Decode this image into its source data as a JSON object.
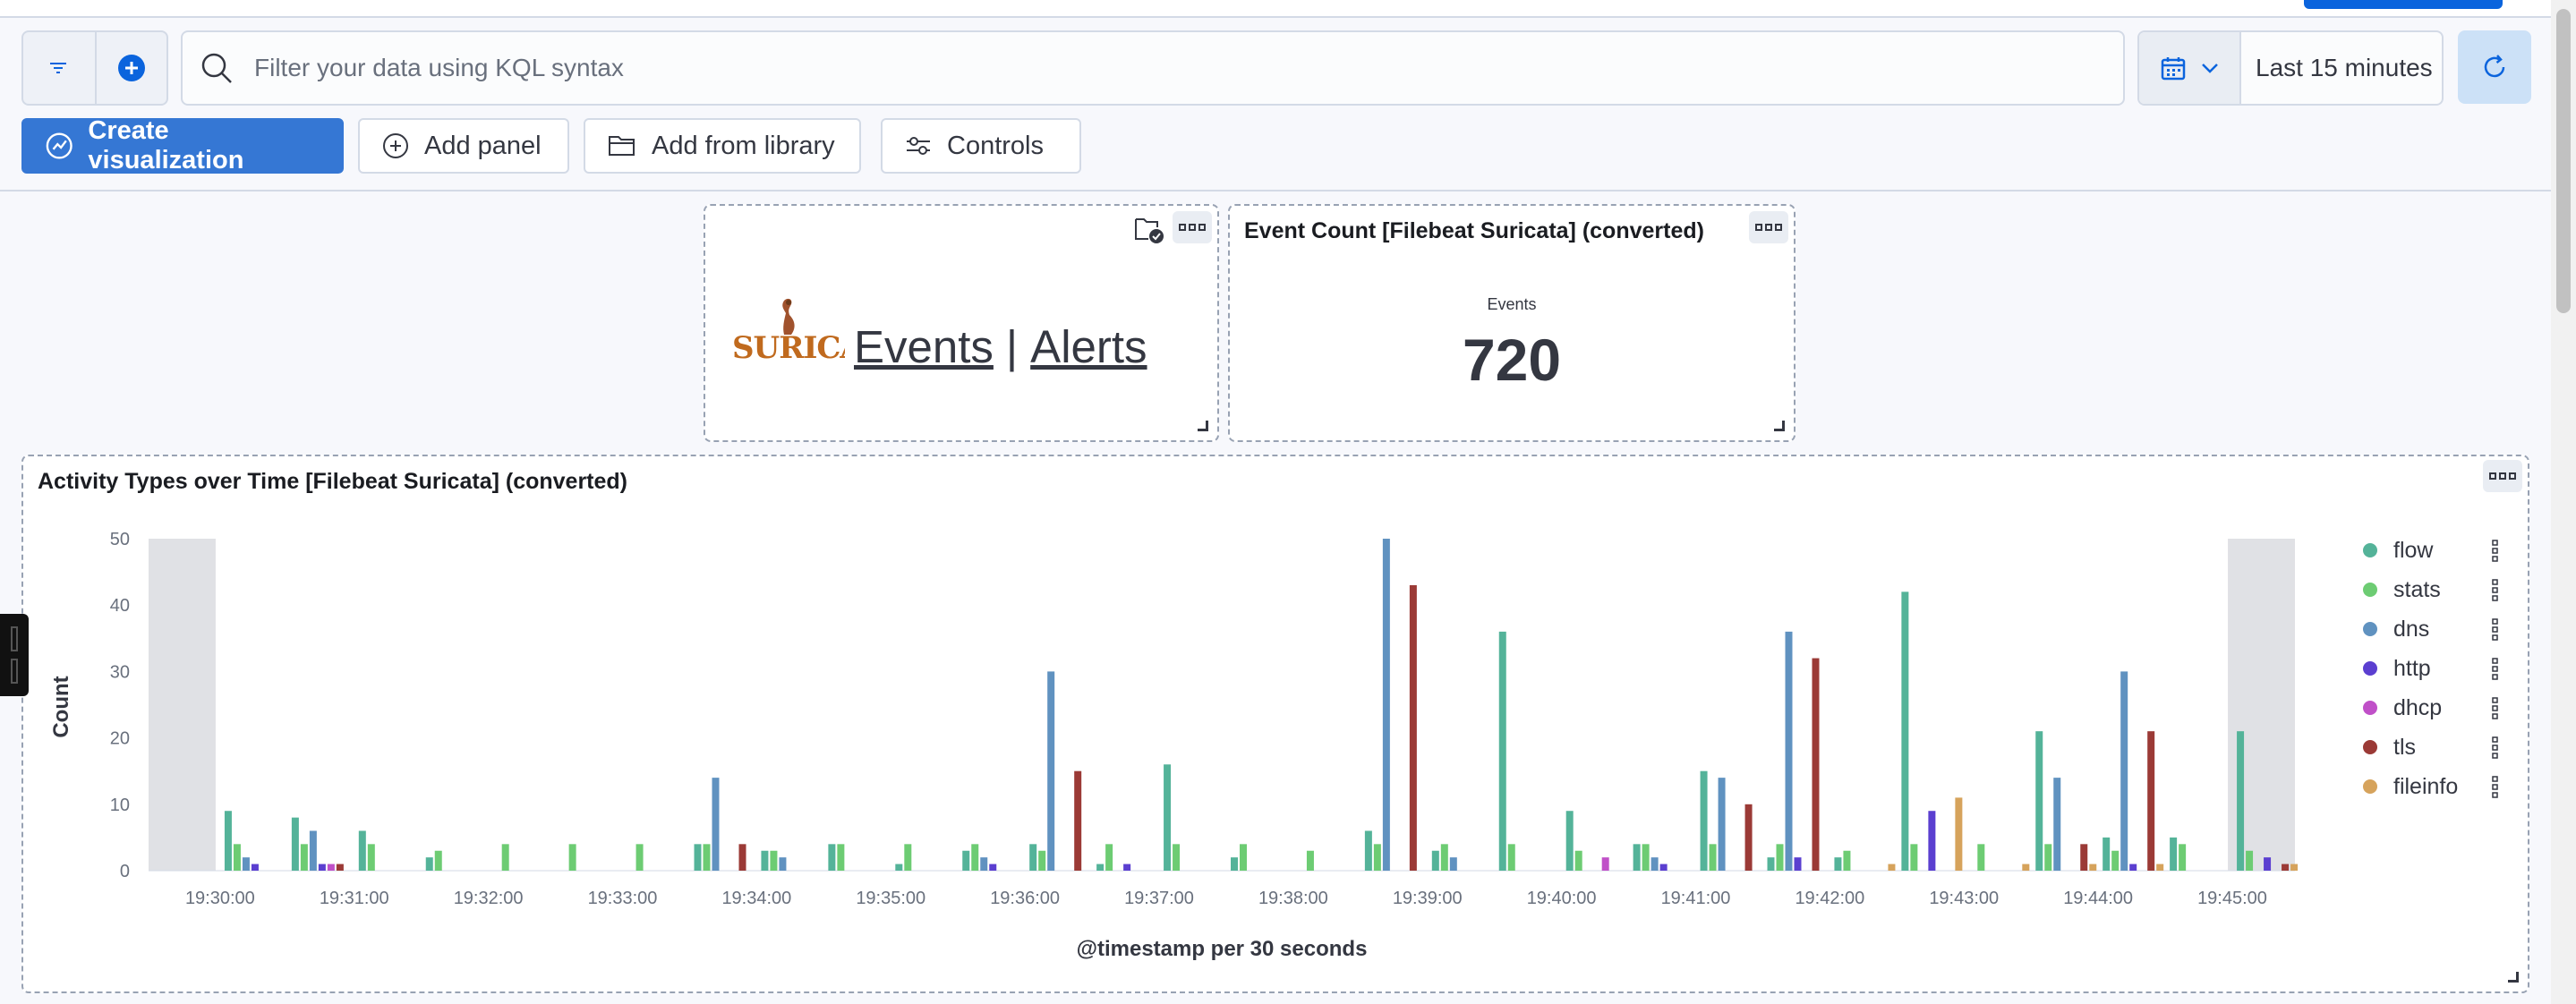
{
  "query_bar": {
    "search_placeholder": "Filter your data using KQL syntax",
    "time_range": "Last 15 minutes"
  },
  "toolbar": {
    "create_visualization": "Create visualization",
    "add_panel": "Add panel",
    "add_from_library": "Add from library",
    "controls": "Controls"
  },
  "panels": {
    "links": {
      "logo_text": "SURICATA",
      "events_link": "Events",
      "separator": "|",
      "alerts_link": "Alerts"
    },
    "event_count": {
      "title": "Event Count [Filebeat Suricata] (converted)",
      "label": "Events",
      "value": "720"
    },
    "activity": {
      "title": "Activity Types over Time [Filebeat Suricata] (converted)"
    }
  },
  "colors": {
    "primary": "#3577d4",
    "flow": "#54b399",
    "stats": "#6dcc73",
    "dns": "#6092c0",
    "http": "#5b3fd0",
    "dhcp": "#c050c8",
    "tls": "#9b3a36",
    "fileinfo": "#d6a35c"
  },
  "chart_data": {
    "type": "bar",
    "xlabel": "@timestamp per 30 seconds",
    "ylabel": "Count",
    "ylim": [
      0,
      50
    ],
    "yticks": [
      0,
      10,
      20,
      30,
      40,
      50
    ],
    "x_start": "19:29:30",
    "x_end": "19:45:30",
    "x_tick_labels": [
      "19:30:00",
      "19:31:00",
      "19:32:00",
      "19:33:00",
      "19:34:00",
      "19:35:00",
      "19:36:00",
      "19:37:00",
      "19:38:00",
      "19:39:00",
      "19:40:00",
      "19:41:00",
      "19:42:00",
      "19:43:00",
      "19:44:00",
      "19:45:00"
    ],
    "shaded_regions": [
      [
        "19:29:30",
        "19:30:00"
      ],
      [
        "19:45:00",
        "19:45:30"
      ]
    ],
    "legend_position": "right",
    "categories": [
      "19:30:00",
      "19:30:30",
      "19:31:00",
      "19:31:30",
      "19:32:00",
      "19:32:30",
      "19:33:00",
      "19:33:30",
      "19:34:00",
      "19:34:30",
      "19:35:00",
      "19:35:30",
      "19:36:00",
      "19:36:30",
      "19:37:00",
      "19:37:30",
      "19:38:00",
      "19:38:30",
      "19:39:00",
      "19:39:30",
      "19:40:00",
      "19:40:30",
      "19:41:00",
      "19:41:30",
      "19:42:00",
      "19:42:30",
      "19:43:00",
      "19:43:30",
      "19:44:00",
      "19:44:30",
      "19:45:00"
    ],
    "series": [
      {
        "name": "flow",
        "values": [
          9,
          8,
          6,
          2,
          0,
          0,
          0,
          4,
          3,
          4,
          1,
          3,
          4,
          1,
          16,
          2,
          0,
          6,
          3,
          36,
          9,
          4,
          15,
          2,
          2,
          42,
          0,
          21,
          5,
          5,
          21
        ]
      },
      {
        "name": "stats",
        "values": [
          4,
          4,
          4,
          3,
          4,
          4,
          4,
          4,
          3,
          4,
          4,
          4,
          3,
          4,
          4,
          4,
          3,
          4,
          4,
          4,
          3,
          4,
          4,
          4,
          3,
          4,
          4,
          4,
          3,
          4,
          3
        ]
      },
      {
        "name": "dns",
        "values": [
          2,
          6,
          0,
          0,
          0,
          0,
          0,
          14,
          2,
          0,
          0,
          2,
          30,
          0,
          0,
          0,
          0,
          50,
          2,
          0,
          0,
          2,
          14,
          36,
          0,
          0,
          0,
          14,
          30,
          0,
          0
        ]
      },
      {
        "name": "http",
        "values": [
          1,
          1,
          0,
          0,
          0,
          0,
          0,
          0,
          0,
          0,
          0,
          1,
          0,
          1,
          0,
          0,
          0,
          0,
          0,
          0,
          0,
          1,
          0,
          2,
          0,
          9,
          0,
          0,
          1,
          0,
          2
        ]
      },
      {
        "name": "dhcp",
        "values": [
          0,
          1,
          0,
          0,
          0,
          0,
          0,
          0,
          0,
          0,
          0,
          0,
          0,
          0,
          0,
          0,
          0,
          0,
          0,
          0,
          2,
          0,
          0,
          0,
          0,
          0,
          0,
          0,
          0,
          0,
          0
        ]
      },
      {
        "name": "tls",
        "values": [
          0,
          1,
          0,
          0,
          0,
          0,
          0,
          4,
          0,
          0,
          0,
          0,
          15,
          0,
          0,
          0,
          0,
          43,
          0,
          0,
          0,
          0,
          10,
          32,
          0,
          0,
          0,
          4,
          21,
          0,
          1
        ]
      },
      {
        "name": "fileinfo",
        "values": [
          0,
          0,
          0,
          0,
          0,
          0,
          0,
          0,
          0,
          0,
          0,
          0,
          0,
          0,
          0,
          0,
          0,
          0,
          0,
          0,
          0,
          0,
          0,
          0,
          1,
          11,
          1,
          1,
          1,
          0,
          1
        ]
      }
    ]
  }
}
